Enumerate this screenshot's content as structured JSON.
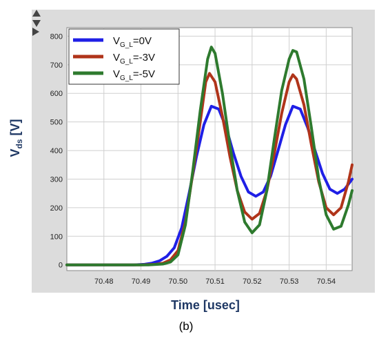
{
  "chart_data": {
    "type": "line",
    "xlabel": "Time [usec]",
    "ylabel_main": "V",
    "ylabel_sub": "ds",
    "ylabel_unit": " [V]",
    "xlim": [
      70.47,
      70.547
    ],
    "ylim": [
      -20,
      830
    ],
    "xticks": [
      "70.48",
      "70.49",
      "70.50",
      "70.51",
      "70.52",
      "70.53",
      "70.54"
    ],
    "yticks": [
      "0",
      "100",
      "200",
      "300",
      "400",
      "500",
      "600",
      "700",
      "800"
    ],
    "legend_position": "top-left",
    "series": [
      {
        "name": "V_G_L=0V",
        "legend": {
          "pre": "V",
          "sub": "G_L",
          "post": "=0V"
        },
        "color": "#1f1fe6",
        "points": [
          [
            70.47,
            0
          ],
          [
            70.48,
            0
          ],
          [
            70.488,
            0
          ],
          [
            70.491,
            2
          ],
          [
            70.493,
            6
          ],
          [
            70.495,
            14
          ],
          [
            70.497,
            30
          ],
          [
            70.499,
            60
          ],
          [
            70.501,
            130
          ],
          [
            70.503,
            250
          ],
          [
            70.505,
            380
          ],
          [
            70.507,
            490
          ],
          [
            70.509,
            555
          ],
          [
            70.511,
            545
          ],
          [
            70.513,
            480
          ],
          [
            70.515,
            390
          ],
          [
            70.517,
            310
          ],
          [
            70.519,
            255
          ],
          [
            70.521,
            240
          ],
          [
            70.523,
            255
          ],
          [
            70.525,
            310
          ],
          [
            70.527,
            400
          ],
          [
            70.529,
            490
          ],
          [
            70.531,
            555
          ],
          [
            70.533,
            545
          ],
          [
            70.535,
            480
          ],
          [
            70.537,
            400
          ],
          [
            70.539,
            320
          ],
          [
            70.541,
            265
          ],
          [
            70.543,
            250
          ],
          [
            70.545,
            265
          ],
          [
            70.547,
            300
          ]
        ]
      },
      {
        "name": "V_G_L=-3V",
        "legend": {
          "pre": "V",
          "sub": "G_L",
          "post": "=-3V"
        },
        "color": "#b0341a",
        "points": [
          [
            70.47,
            0
          ],
          [
            70.49,
            0
          ],
          [
            70.494,
            2
          ],
          [
            70.496,
            6
          ],
          [
            70.498,
            18
          ],
          [
            70.5,
            50
          ],
          [
            70.502,
            150
          ],
          [
            70.504,
            320
          ],
          [
            70.506,
            500
          ],
          [
            70.5075,
            640
          ],
          [
            70.5085,
            670
          ],
          [
            70.51,
            640
          ],
          [
            70.512,
            520
          ],
          [
            70.514,
            380
          ],
          [
            70.516,
            260
          ],
          [
            70.518,
            185
          ],
          [
            70.52,
            160
          ],
          [
            70.522,
            180
          ],
          [
            70.524,
            260
          ],
          [
            70.526,
            390
          ],
          [
            70.528,
            530
          ],
          [
            70.53,
            640
          ],
          [
            70.531,
            665
          ],
          [
            70.532,
            650
          ],
          [
            70.534,
            560
          ],
          [
            70.536,
            420
          ],
          [
            70.538,
            290
          ],
          [
            70.54,
            200
          ],
          [
            70.542,
            175
          ],
          [
            70.544,
            200
          ],
          [
            70.546,
            290
          ],
          [
            70.547,
            350
          ]
        ]
      },
      {
        "name": "V_G_L=-5V",
        "legend": {
          "pre": "V",
          "sub": "G_L",
          "post": "=-5V"
        },
        "color": "#2e7a2e",
        "points": [
          [
            70.47,
            0
          ],
          [
            70.492,
            0
          ],
          [
            70.496,
            3
          ],
          [
            70.498,
            10
          ],
          [
            70.5,
            35
          ],
          [
            70.502,
            140
          ],
          [
            70.504,
            330
          ],
          [
            70.506,
            540
          ],
          [
            70.508,
            720
          ],
          [
            70.509,
            762
          ],
          [
            70.51,
            740
          ],
          [
            70.512,
            600
          ],
          [
            70.514,
            420
          ],
          [
            70.516,
            260
          ],
          [
            70.518,
            150
          ],
          [
            70.52,
            112
          ],
          [
            70.522,
            140
          ],
          [
            70.524,
            260
          ],
          [
            70.526,
            440
          ],
          [
            70.528,
            610
          ],
          [
            70.53,
            720
          ],
          [
            70.531,
            750
          ],
          [
            70.532,
            745
          ],
          [
            70.534,
            650
          ],
          [
            70.536,
            480
          ],
          [
            70.538,
            300
          ],
          [
            70.54,
            175
          ],
          [
            70.542,
            125
          ],
          [
            70.544,
            135
          ],
          [
            70.546,
            210
          ],
          [
            70.547,
            260
          ]
        ]
      }
    ],
    "caption": "(b)"
  }
}
